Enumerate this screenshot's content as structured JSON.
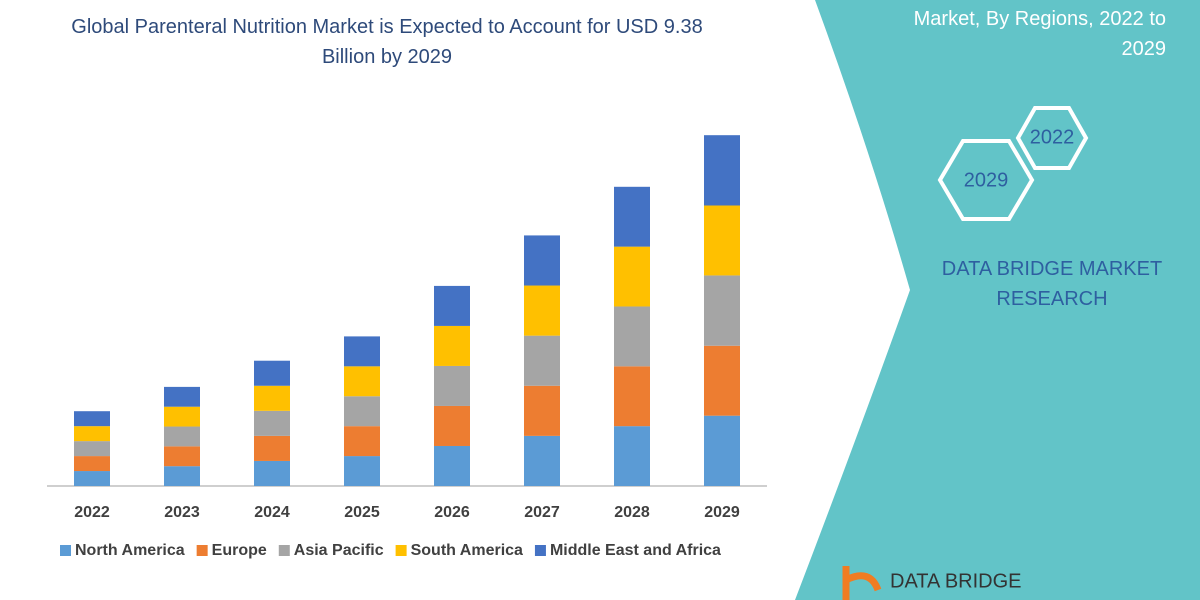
{
  "chart_data": {
    "type": "stacked_bar",
    "title": "Global Parenteral Nutrition Market is Expected to Account for USD 9.38 Billion by 2029",
    "categories": [
      "2022",
      "2023",
      "2024",
      "2025",
      "2026",
      "2027",
      "2028",
      "2029"
    ],
    "series": [
      {
        "name": "North America",
        "color": "#5b9bd5",
        "values": [
          0.4,
          0.53,
          0.67,
          0.8,
          1.07,
          1.34,
          1.6,
          1.88
        ]
      },
      {
        "name": "Europe",
        "color": "#ed7d31",
        "values": [
          0.4,
          0.53,
          0.67,
          0.8,
          1.07,
          1.34,
          1.6,
          1.87
        ]
      },
      {
        "name": "Asia Pacific",
        "color": "#a5a5a5",
        "values": [
          0.4,
          0.53,
          0.67,
          0.8,
          1.07,
          1.34,
          1.6,
          1.88
        ]
      },
      {
        "name": "South America",
        "color": "#ffc000",
        "values": [
          0.4,
          0.53,
          0.67,
          0.8,
          1.07,
          1.34,
          1.6,
          1.87
        ]
      },
      {
        "name": "Middle East and Africa",
        "color": "#4472c4",
        "values": [
          0.4,
          0.53,
          0.67,
          0.8,
          1.07,
          1.34,
          1.6,
          1.88
        ]
      }
    ],
    "ylim": [
      0,
      10
    ]
  },
  "right_panel": {
    "heading": "Market, By Regions, 2022 to 2029",
    "hex_start": "2022",
    "hex_end": "2029",
    "brand": "DATA BRIDGE MARKET RESEARCH",
    "logo": "DATA BRIDGE"
  }
}
